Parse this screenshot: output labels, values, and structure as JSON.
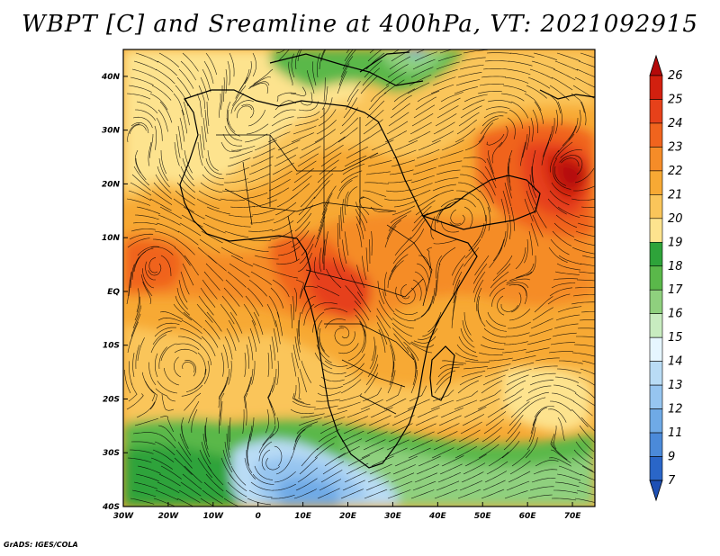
{
  "title": "WBPT [C] and Sreamline at 400hPa, VT: 2021092915",
  "credit": "GrADS: IGES/COLA",
  "map": {
    "lon_range": [
      -30,
      75
    ],
    "lat_range": [
      -40,
      45
    ],
    "lon_ticks": [
      "30W",
      "20W",
      "10W",
      "0",
      "10E",
      "20E",
      "30E",
      "40E",
      "50E",
      "60E",
      "70E"
    ],
    "lat_ticks": [
      "40N",
      "30N",
      "20N",
      "10N",
      "EQ",
      "10S",
      "20S",
      "30S",
      "40S"
    ],
    "field": "wet-bulb potential temperature",
    "overlay": "streamlines"
  },
  "colorbar": {
    "labels": [
      "26",
      "25",
      "24",
      "23",
      "22",
      "21",
      "20",
      "19",
      "18",
      "17",
      "16",
      "15",
      "14",
      "13",
      "12",
      "11",
      "9",
      "7"
    ],
    "colors": [
      "#b40a0a",
      "#d2200f",
      "#e6411a",
      "#f0641e",
      "#f58c28",
      "#f7a934",
      "#fac55a",
      "#fde38e",
      "#2ea33a",
      "#5ab84a",
      "#8fd07e",
      "#c8ecc0",
      "#e6f6ff",
      "#b9dcf5",
      "#96c5f0",
      "#6faae6",
      "#4b8ad9",
      "#2a66c8",
      "#1e50b4"
    ]
  }
}
